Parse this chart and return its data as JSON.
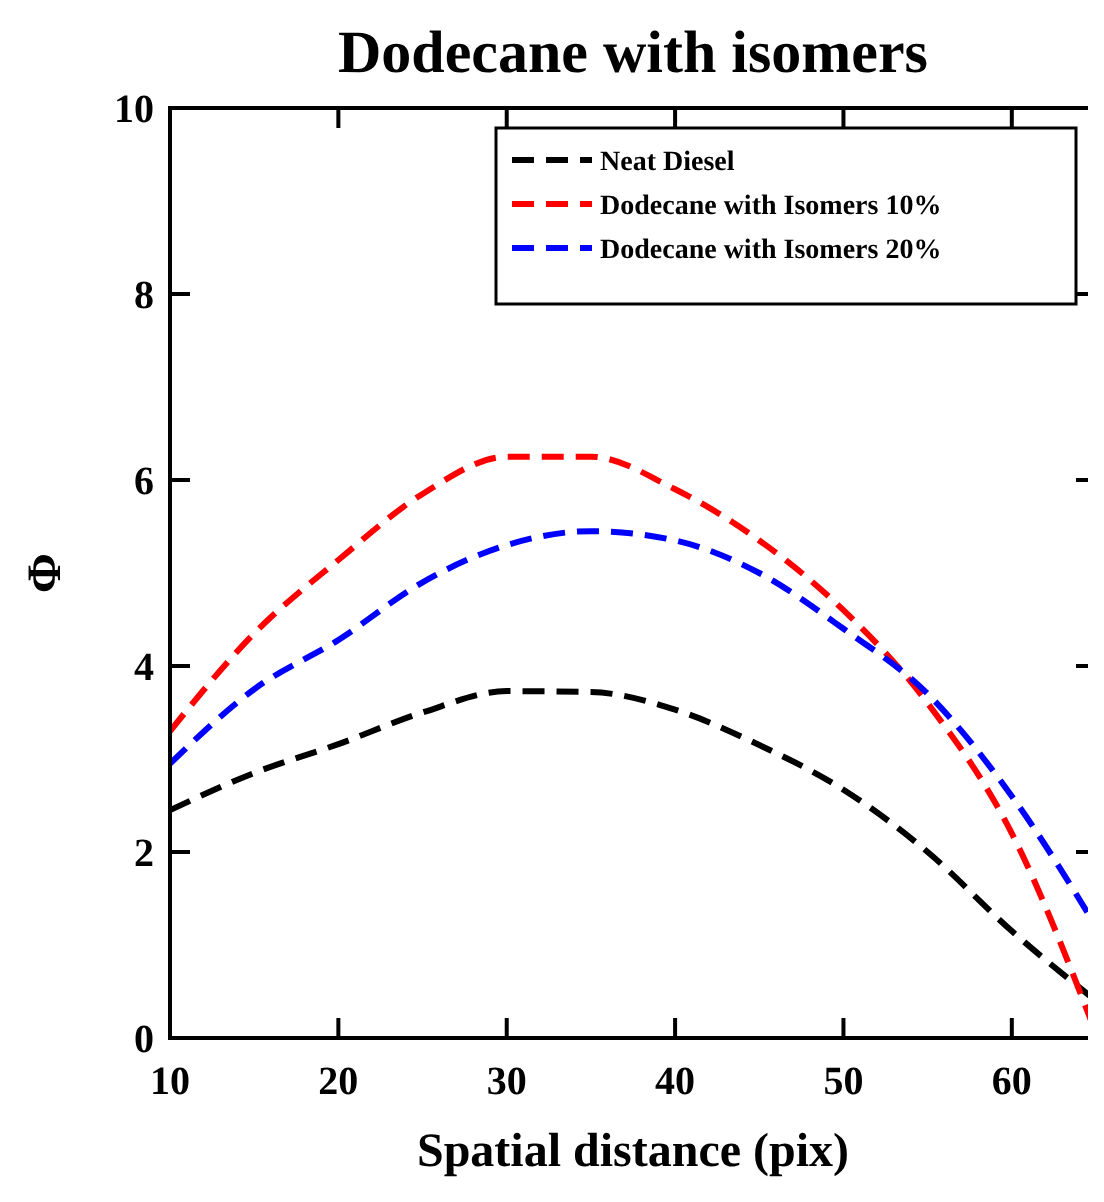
{
  "chart_data": {
    "type": "line",
    "title": "Dodecane with isomers",
    "xlabel": "Spatial distance (pix)",
    "ylabel": "Φ",
    "xlim": [
      10,
      65
    ],
    "xticks": [
      10,
      20,
      30,
      40,
      50,
      60
    ],
    "ylim": [
      0,
      10
    ],
    "yticks": [
      0,
      2,
      4,
      6,
      8,
      10
    ],
    "grid": false,
    "legend": "top right",
    "line_style": "dashed",
    "marker": "none",
    "x": [
      10,
      15,
      20,
      25,
      30,
      35,
      40,
      45,
      50,
      55,
      60,
      65
    ],
    "series": [
      {
        "name": "Neat Diesel",
        "color": "#000000",
        "values": [
          2.45,
          2.85,
          3.16,
          3.5,
          3.73,
          3.72,
          3.53,
          3.15,
          2.67,
          2.0,
          1.15,
          0.4
        ]
      },
      {
        "name": "Dodecane with Isomers 10%",
        "color": "#ff0000",
        "values": [
          3.3,
          4.35,
          5.14,
          5.85,
          6.25,
          6.25,
          5.9,
          5.35,
          4.6,
          3.6,
          2.2,
          0.05
        ]
      },
      {
        "name": "Dodecane with Isomers 20%",
        "color": "#0000ff",
        "values": [
          2.95,
          3.75,
          4.28,
          4.9,
          5.3,
          5.45,
          5.35,
          5.0,
          4.4,
          3.7,
          2.6,
          1.2
        ]
      }
    ]
  }
}
